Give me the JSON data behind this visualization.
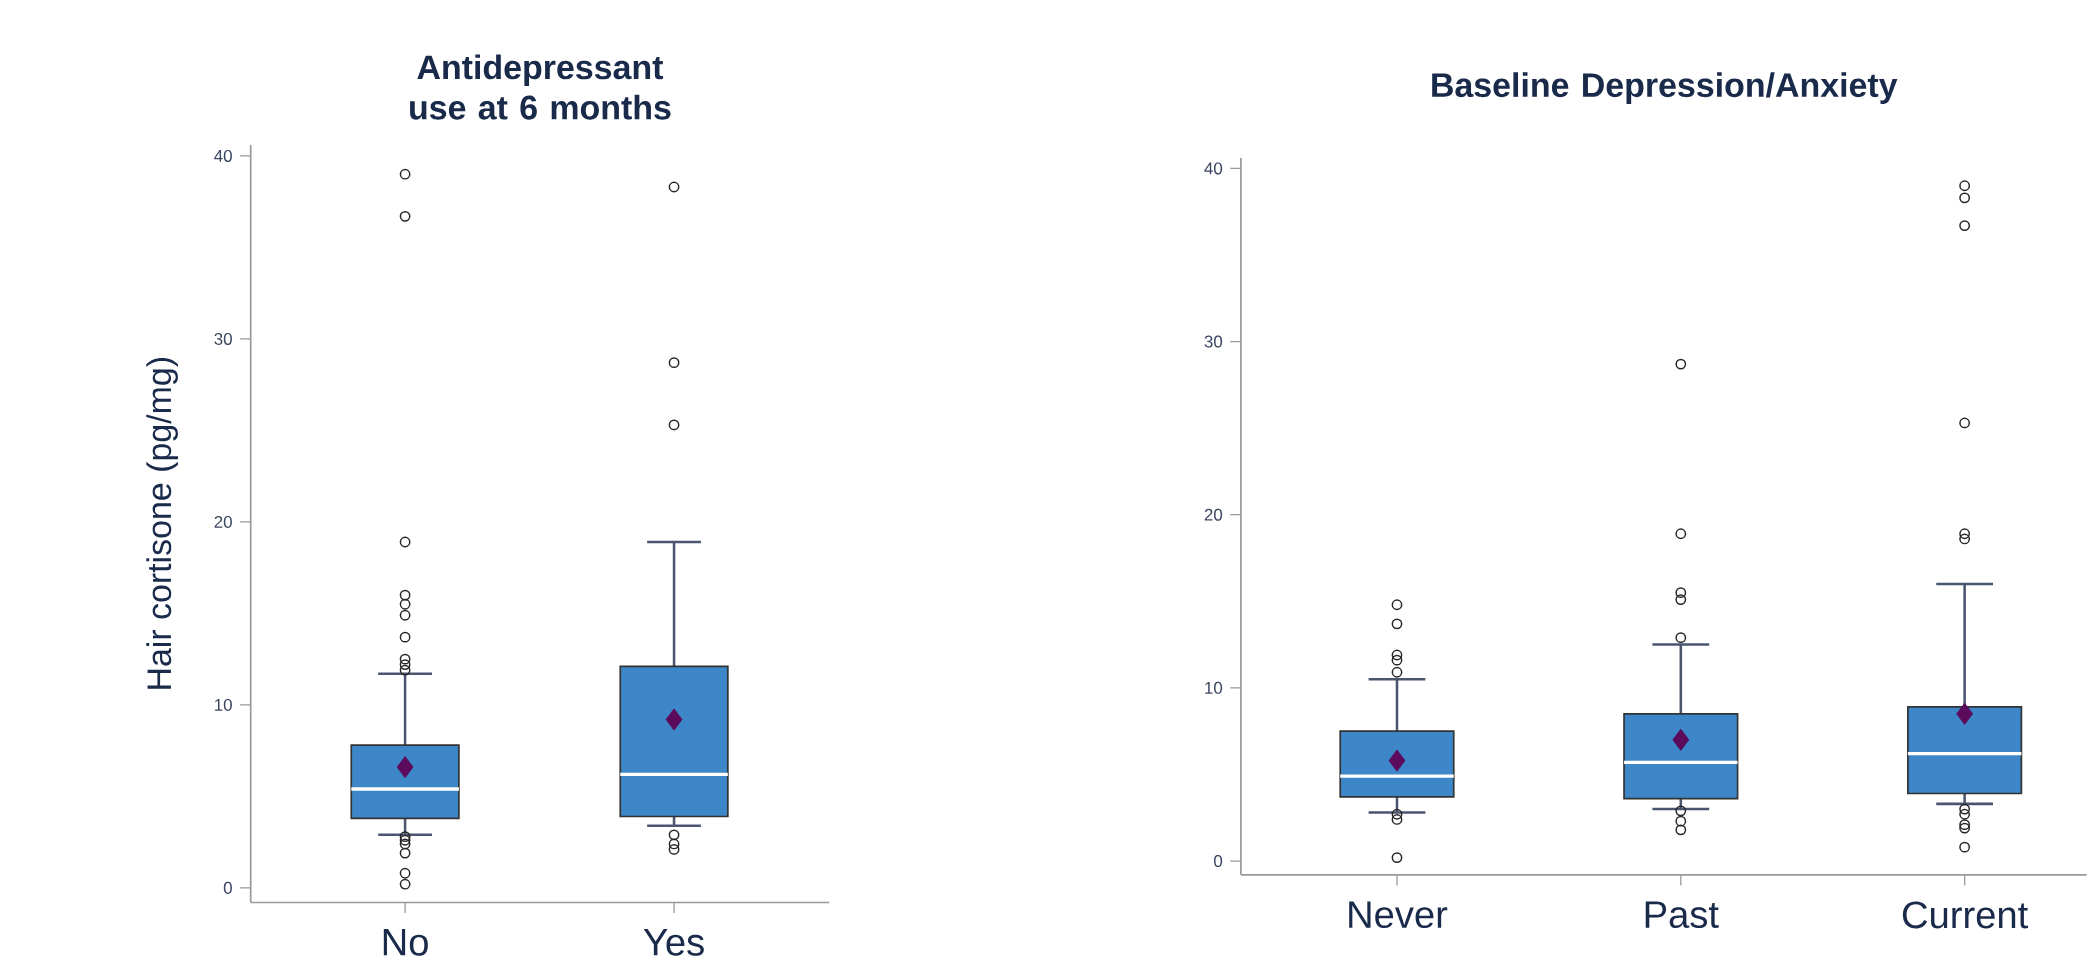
{
  "chart_data": [
    {
      "type": "box",
      "title": "Antidepressant use at 6 months",
      "ylabel": "Hair cortisone (pg/mg)",
      "categories": [
        "No",
        "Yes"
      ],
      "color": "#3d87c8",
      "boxes": [
        {
          "low": 2.9,
          "q1": 3.8,
          "median": 5.4,
          "q3": 7.8,
          "high": 11.7,
          "mean": 6.6,
          "outliers": [
            39.0,
            36.7,
            18.9,
            16.0,
            15.5,
            14.9,
            13.7,
            12.5,
            12.2,
            11.9,
            2.8,
            2.6,
            2.4,
            1.9,
            0.8,
            0.2
          ]
        },
        {
          "low": 3.4,
          "q1": 3.9,
          "median": 6.2,
          "q3": 12.1,
          "high": 18.9,
          "mean": 9.2,
          "outliers": [
            38.3,
            28.7,
            25.3,
            2.9,
            2.4,
            2.1
          ]
        }
      ],
      "ylim": [
        -0.8,
        40.6
      ],
      "yticks": [
        0,
        10,
        20,
        30,
        40
      ]
    },
    {
      "type": "box",
      "title": "Baseline Depression/Anxiety",
      "categories": [
        "Never",
        "Past",
        "Current"
      ],
      "color": "#3d87c8",
      "boxes": [
        {
          "low": 2.8,
          "q1": 3.7,
          "median": 4.9,
          "q3": 7.5,
          "high": 10.5,
          "mean": 5.8,
          "outliers": [
            14.8,
            13.7,
            11.9,
            11.6,
            10.9,
            2.7,
            2.4,
            0.2
          ]
        },
        {
          "low": 3.0,
          "q1": 3.6,
          "median": 5.7,
          "q3": 8.5,
          "high": 12.5,
          "mean": 7.0,
          "outliers": [
            28.7,
            18.9,
            15.5,
            15.1,
            12.9,
            2.9,
            2.3,
            1.8
          ]
        },
        {
          "low": 3.3,
          "q1": 3.9,
          "median": 6.2,
          "q3": 8.9,
          "high": 16.0,
          "mean": 8.5,
          "outliers": [
            39.0,
            38.3,
            36.7,
            25.3,
            18.9,
            18.6,
            3.0,
            2.7,
            2.1,
            1.9,
            0.8
          ]
        }
      ],
      "ylim": [
        -0.8,
        40.6
      ],
      "yticks": [
        0,
        10,
        20,
        30,
        40
      ]
    }
  ]
}
